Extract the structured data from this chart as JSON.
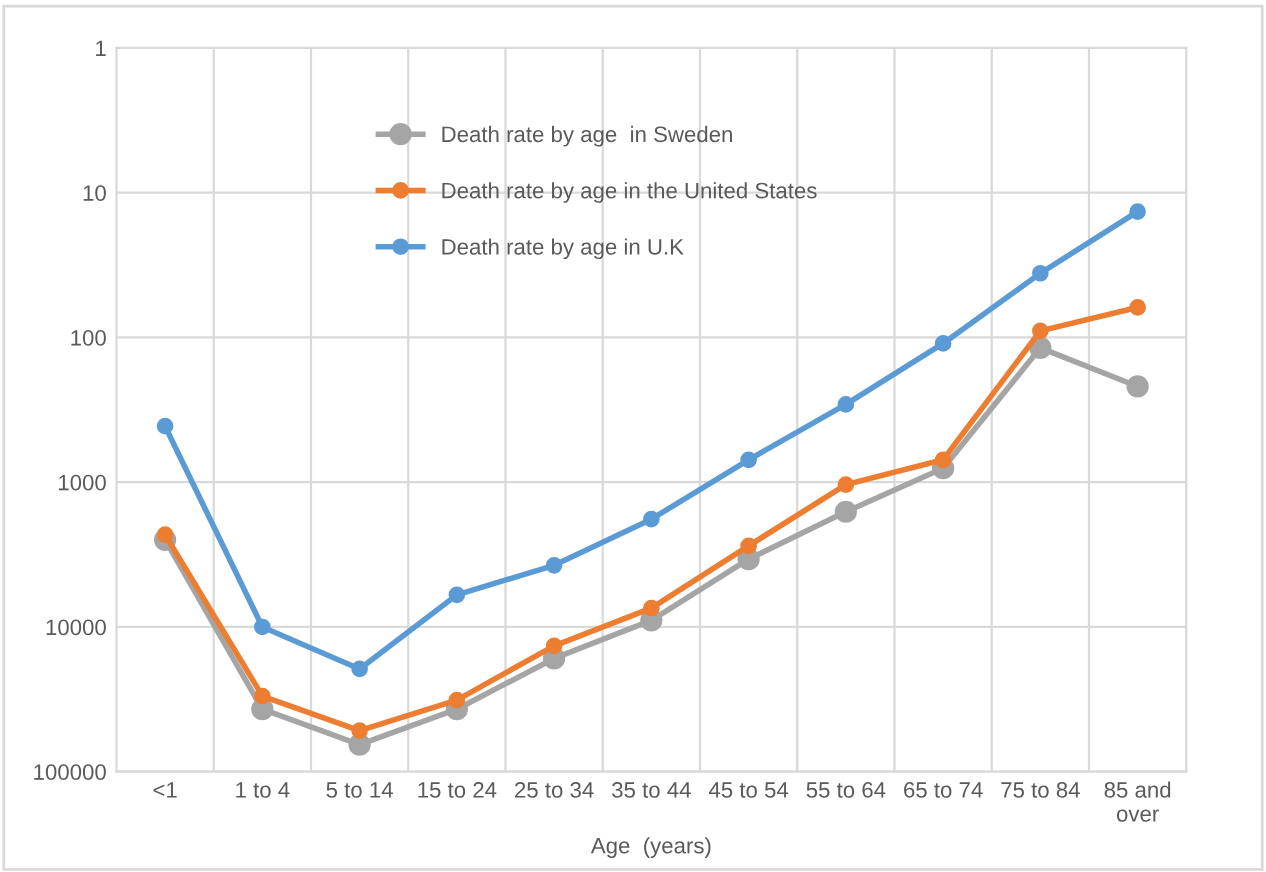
{
  "chart_data": {
    "type": "line",
    "xlabel": "Age  (years)",
    "categories": [
      "<1",
      "1 to 4",
      "5 to 14",
      "15 to 24",
      "25 to 34",
      "35 to 44",
      "45 to 54",
      "55 to 64",
      "65 to 74",
      "75 to 84",
      "85 and\nover"
    ],
    "series": [
      {
        "name": "Death rate by age  in Sweden",
        "color": "#a5a5a5",
        "values": [
          2500,
          37000,
          65000,
          37000,
          16500,
          9000,
          3400,
          1600,
          800,
          118,
          218
        ]
      },
      {
        "name": "Death rate by age in the United States",
        "color": "#ed7d31",
        "values": [
          2300,
          30000,
          52000,
          32000,
          13500,
          7400,
          2750,
          1040,
          700,
          90,
          62
        ]
      },
      {
        "name": "Death rate by age in U.K",
        "color": "#5b9bd5",
        "values": [
          410,
          10000,
          19500,
          6000,
          3750,
          1800,
          700,
          290,
          110,
          36,
          13.5
        ]
      }
    ],
    "log": "y",
    "ylim": [
      100000,
      1
    ],
    "yticks": [
      1,
      10,
      100,
      1000,
      10000,
      100000
    ],
    "grid": true,
    "legend": "top",
    "marker": "circle",
    "line_style": "solid"
  }
}
